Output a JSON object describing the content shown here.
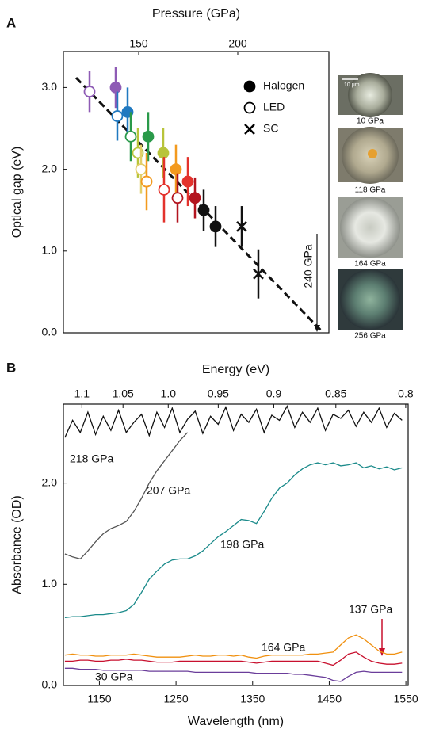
{
  "panel_labels": [
    "A",
    "B"
  ],
  "micrographs": {
    "scale_bar": "10 μm",
    "captions": [
      "10 GPa",
      "118 GPa",
      "164 GPa",
      "256 GPa"
    ]
  },
  "chart_data": [
    {
      "type": "scatter",
      "x_label": "Pressure (GPa)",
      "y_label": "Optical gap (eV)",
      "xlim": [
        112,
        246
      ],
      "xticks": [
        150,
        200
      ],
      "ylim": [
        0,
        3.44
      ],
      "yticks": [
        {
          "value": 0,
          "label": "0.0"
        },
        {
          "value": 1,
          "label": "1.0"
        },
        {
          "value": 2,
          "label": "2.0"
        },
        {
          "value": 3,
          "label": "3.0"
        }
      ],
      "legend": "upper right",
      "series": [
        {
          "name": "Halogen",
          "marker": "filled",
          "color": "#000000",
          "x": [
            138.4,
            144.4,
            154.8,
            162.4,
            168.8,
            174.8,
            178.4,
            182.8,
            188.8
          ],
          "values": [
            3.0,
            2.7,
            2.4,
            2.2,
            2.0,
            1.85,
            1.65,
            1.5,
            1.3
          ],
          "errors": [
            0.25,
            0.3,
            0.3,
            0.3,
            0.3,
            0.3,
            0.25,
            0.25,
            0.25
          ],
          "colors": [
            "#8e5bb5",
            "#2079c0",
            "#2a9a4a",
            "#b8c43a",
            "#f39a1e",
            "#e3322c",
            "#b3141f",
            "#111111",
            "#111111"
          ]
        },
        {
          "name": "LED",
          "marker": "open",
          "color": "#000000",
          "x": [
            125.2,
            139.2,
            146,
            149.6,
            151.2,
            154,
            162.8,
            169.6
          ],
          "values": [
            2.95,
            2.65,
            2.4,
            2.2,
            2.0,
            1.85,
            1.75,
            1.65
          ],
          "errors": [
            0.25,
            0.3,
            0.3,
            0.3,
            0.3,
            0.35,
            0.4,
            0.3
          ],
          "colors": [
            "#8e5bb5",
            "#2079c0",
            "#2a9a4a",
            "#b8c43a",
            "#e3cf6a",
            "#f39a1e",
            "#e3322c",
            "#b3141f"
          ]
        },
        {
          "name": "SC",
          "marker": "x",
          "color": "#000000",
          "x": [
            202,
            210.4
          ],
          "values": [
            1.3,
            0.72
          ],
          "errors": [
            0.25,
            0.3
          ],
          "colors": [
            "#111111",
            "#111111"
          ]
        }
      ],
      "fit_line": {
        "x": [
          118.4,
          242
        ],
        "values": [
          3.12,
          0.03
        ]
      },
      "annotation": {
        "text": "240 GPa",
        "x": 240
      }
    },
    {
      "type": "line",
      "x_label": "Wavelength (nm)",
      "y_label": "Absorbance (OD)",
      "x2_label": "Energy (eV)",
      "xlim": [
        1103,
        1553
      ],
      "xticks": [
        1150,
        1250,
        1350,
        1450,
        1550
      ],
      "x2ticks": [
        1.1,
        1.05,
        {
          "value": 1.0,
          "label": "1.0"
        },
        0.95,
        0.9,
        0.85,
        0.8
      ],
      "ylim": [
        0,
        2.78
      ],
      "yticks": [
        {
          "value": 0,
          "label": "0.0"
        },
        {
          "value": 1,
          "label": "1.0"
        },
        {
          "value": 2,
          "label": "2.0"
        }
      ],
      "x": [
        1105,
        1115,
        1125,
        1135,
        1145,
        1155,
        1165,
        1175,
        1185,
        1195,
        1205,
        1215,
        1225,
        1235,
        1245,
        1255,
        1265,
        1275,
        1285,
        1295,
        1305,
        1315,
        1325,
        1335,
        1345,
        1355,
        1365,
        1375,
        1385,
        1395,
        1405,
        1415,
        1425,
        1435,
        1445,
        1455,
        1465,
        1475,
        1485,
        1495,
        1505,
        1515,
        1525,
        1535,
        1545
      ],
      "series": [
        {
          "name": "30 GPa",
          "color": "#6a3d9a",
          "values": [
            0.17,
            0.17,
            0.16,
            0.16,
            0.16,
            0.15,
            0.15,
            0.15,
            0.15,
            0.15,
            0.15,
            0.14,
            0.14,
            0.14,
            0.14,
            0.14,
            0.14,
            0.13,
            0.13,
            0.13,
            0.13,
            0.13,
            0.13,
            0.13,
            0.13,
            0.12,
            0.12,
            0.12,
            0.12,
            0.12,
            0.11,
            0.11,
            0.1,
            0.09,
            0.08,
            0.05,
            0.04,
            0.09,
            0.13,
            0.14,
            0.13,
            0.13,
            0.13,
            0.13,
            0.13
          ]
        },
        {
          "name": "137 GPa",
          "color": "#c8102e",
          "values": [
            0.24,
            0.24,
            0.25,
            0.25,
            0.24,
            0.24,
            0.25,
            0.25,
            0.26,
            0.25,
            0.25,
            0.24,
            0.23,
            0.23,
            0.23,
            0.24,
            0.24,
            0.24,
            0.24,
            0.24,
            0.24,
            0.24,
            0.24,
            0.24,
            0.23,
            0.22,
            0.23,
            0.24,
            0.24,
            0.24,
            0.24,
            0.24,
            0.24,
            0.24,
            0.22,
            0.2,
            0.25,
            0.31,
            0.33,
            0.28,
            0.24,
            0.22,
            0.21,
            0.21,
            0.22
          ]
        },
        {
          "name": "164 GPa",
          "color": "#f0900f",
          "values": [
            0.3,
            0.31,
            0.3,
            0.3,
            0.29,
            0.29,
            0.3,
            0.3,
            0.3,
            0.31,
            0.3,
            0.29,
            0.28,
            0.28,
            0.28,
            0.28,
            0.29,
            0.3,
            0.29,
            0.29,
            0.3,
            0.3,
            0.29,
            0.3,
            0.28,
            0.27,
            0.29,
            0.3,
            0.3,
            0.3,
            0.3,
            0.3,
            0.31,
            0.31,
            0.32,
            0.33,
            0.4,
            0.47,
            0.5,
            0.46,
            0.4,
            0.34,
            0.31,
            0.31,
            0.33
          ]
        },
        {
          "name": "198 GPa",
          "color": "#1a8a8a",
          "values": [
            0.67,
            0.68,
            0.68,
            0.69,
            0.7,
            0.7,
            0.71,
            0.72,
            0.74,
            0.8,
            0.92,
            1.05,
            1.13,
            1.2,
            1.24,
            1.25,
            1.25,
            1.28,
            1.33,
            1.4,
            1.47,
            1.52,
            1.58,
            1.64,
            1.63,
            1.6,
            1.72,
            1.85,
            1.95,
            2.0,
            2.08,
            2.14,
            2.18,
            2.2,
            2.18,
            2.2,
            2.17,
            2.18,
            2.2,
            2.15,
            2.17,
            2.14,
            2.16,
            2.13,
            2.15
          ]
        },
        {
          "name": "207 GPa",
          "color": "#555555",
          "values": [
            1.3,
            1.27,
            1.25,
            1.33,
            1.42,
            1.5,
            1.55,
            1.58,
            1.62,
            1.72,
            1.85,
            2.0,
            2.12,
            2.22,
            2.32,
            2.42,
            2.5,
            null,
            null,
            null,
            null,
            null,
            null,
            null,
            null,
            null,
            null,
            null,
            null,
            null,
            null,
            null,
            null,
            null,
            null,
            null,
            null,
            null,
            null,
            null,
            null,
            null,
            null,
            null,
            null
          ]
        },
        {
          "name": "218 GPa",
          "color": "#111111",
          "values": [
            2.45,
            2.62,
            2.5,
            2.7,
            2.48,
            2.66,
            2.52,
            2.72,
            2.5,
            2.6,
            2.68,
            2.47,
            2.7,
            2.55,
            2.74,
            2.5,
            2.63,
            2.71,
            2.49,
            2.66,
            2.58,
            2.75,
            2.52,
            2.68,
            2.6,
            2.73,
            2.5,
            2.67,
            2.62,
            2.76,
            2.55,
            2.7,
            2.6,
            2.74,
            2.52,
            2.68,
            2.64,
            2.72,
            2.56,
            2.7,
            2.6,
            2.74,
            2.55,
            2.69,
            2.62
          ]
        }
      ]
    }
  ]
}
